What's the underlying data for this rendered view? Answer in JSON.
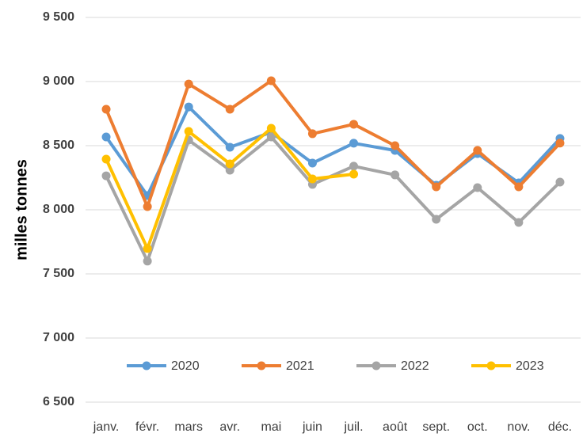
{
  "chart_data": {
    "type": "line",
    "y_label": "milles tonnes",
    "categories": [
      "janv.",
      "févr.",
      "mars",
      "avr.",
      "mai",
      "juin",
      "juil.",
      "août",
      "sept.",
      "oct.",
      "nov.",
      "déc."
    ],
    "series": [
      {
        "name": "2020",
        "color": "#5b9bd5",
        "values": [
          8568,
          8111,
          8802,
          8488,
          8605,
          8364,
          8519,
          8463,
          8191,
          8438,
          8210,
          8556
        ]
      },
      {
        "name": "2021",
        "color": "#ed7d31",
        "values": [
          8784,
          8025,
          8981,
          8784,
          9006,
          8593,
          8667,
          8500,
          8179,
          8463,
          8179,
          8520
        ]
      },
      {
        "name": "2022",
        "color": "#a5a5a5",
        "values": [
          8265,
          7600,
          8543,
          8309,
          8568,
          8198,
          8340,
          8272,
          7926,
          8173,
          7901,
          8216
        ]
      },
      {
        "name": "2023",
        "color": "#ffc000",
        "values": [
          8395,
          7698,
          8611,
          8358,
          8636,
          8241,
          8278,
          null,
          null,
          null,
          null,
          null
        ]
      }
    ],
    "ylim": [
      6500,
      9500
    ],
    "yticks": [
      {
        "value": 6500,
        "label": "6 500"
      },
      {
        "value": 7000,
        "label": "7 000"
      },
      {
        "value": 7500,
        "label": "7 500"
      },
      {
        "value": 8000,
        "label": "8 000"
      },
      {
        "value": 8500,
        "label": "8 500"
      },
      {
        "value": 9000,
        "label": "9 000"
      },
      {
        "value": 9500,
        "label": "9 500"
      }
    ],
    "grid": true
  }
}
